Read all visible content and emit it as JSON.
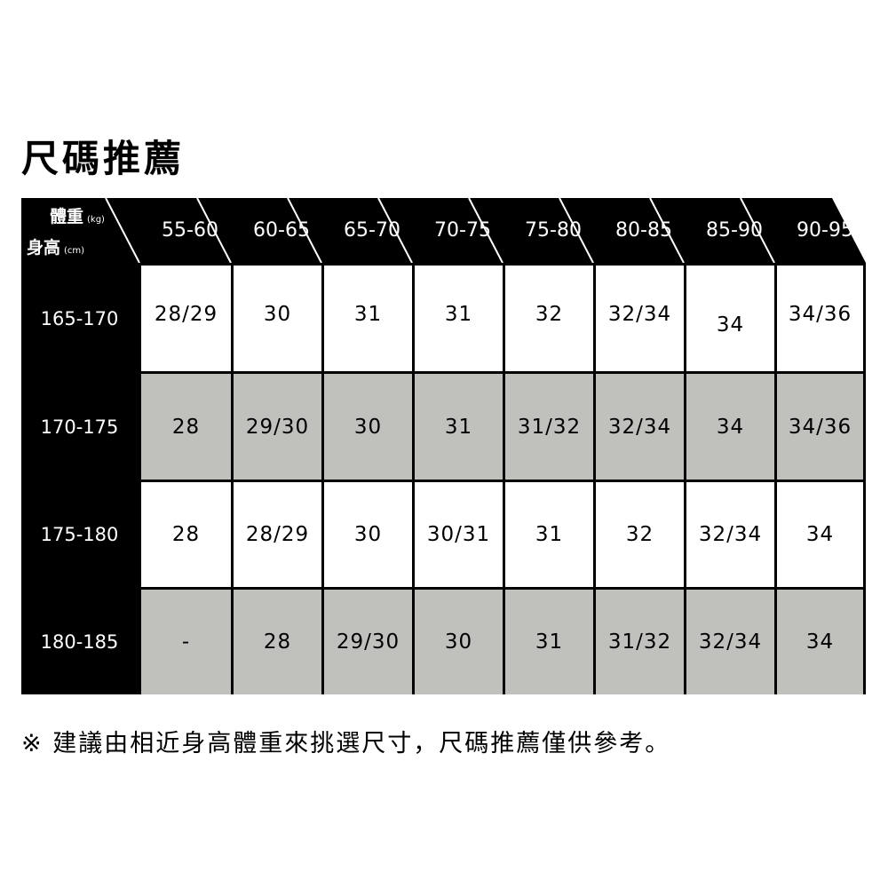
{
  "title": "尺碼推薦",
  "corner": {
    "weight_label": "體重",
    "weight_unit": "(kg)",
    "height_label": "身高",
    "height_unit": "(cm)"
  },
  "weight_ranges": [
    "55-60",
    "60-65",
    "65-70",
    "70-75",
    "75-80",
    "80-85",
    "85-90",
    "90-95"
  ],
  "rows": [
    {
      "height": "165-170",
      "sizes": [
        "28/29",
        "30",
        "31",
        "31",
        "32",
        "32/34",
        "34",
        "34/36"
      ]
    },
    {
      "height": "170-175",
      "sizes": [
        "28",
        "29/30",
        "30",
        "31",
        "31/32",
        "32/34",
        "34",
        "34/36"
      ]
    },
    {
      "height": "175-180",
      "sizes": [
        "28",
        "28/29",
        "30",
        "30/31",
        "31",
        "32",
        "32/34",
        "34"
      ]
    },
    {
      "height": "180-185",
      "sizes": [
        "-",
        "28",
        "29/30",
        "30",
        "31",
        "31/32",
        "32/34",
        "34"
      ]
    }
  ],
  "row_colors": [
    "#ffffff",
    "#c0c0bd",
    "#ffffff",
    "#c0c0bd"
  ],
  "note": "※ 建議由相近身高體重來挑選尺寸，尺碼推薦僅供參考。"
}
